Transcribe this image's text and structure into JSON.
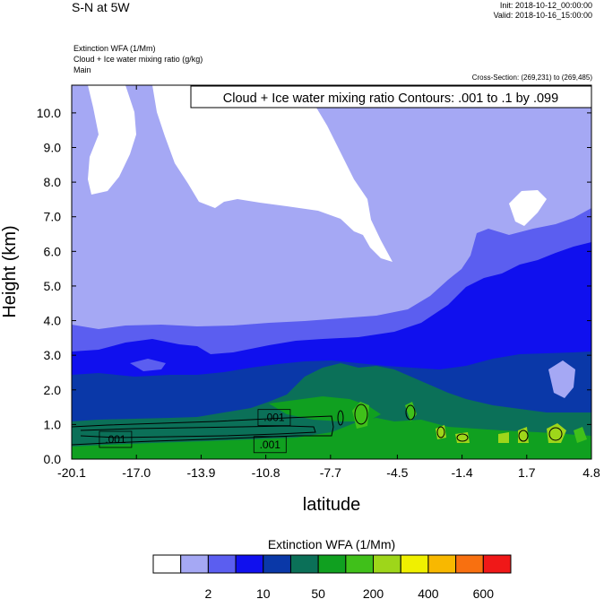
{
  "header": {
    "title": "S-N at 5W",
    "init": "Init: 2018-10-12_00:00:00",
    "valid": "Valid: 2018-10-16_15:00:00",
    "fields": [
      "Extinction WFA   (1/Mm)",
      "Cloud + Ice water mixing ratio   (g/kg)",
      "Main"
    ],
    "cross_section": "Cross-Section: (269,231) to (269,485)"
  },
  "chart_data": {
    "type": "heatmap",
    "title": "S-N at 5W",
    "xlabel": "latitude",
    "ylabel": "Height (km)",
    "x_ticks": [
      "-20.1",
      "-17.0",
      "-13.9",
      "-10.8",
      "-7.7",
      "-4.5",
      "-1.4",
      "1.7",
      "4.8"
    ],
    "x_values": [
      -20.1,
      -17.0,
      -13.9,
      -10.8,
      -7.7,
      -4.5,
      -1.4,
      1.7,
      4.8
    ],
    "y_ticks": [
      "0.0",
      "1.0",
      "2.0",
      "3.0",
      "4.0",
      "5.0",
      "6.0",
      "7.0",
      "8.0",
      "9.0",
      "10.0"
    ],
    "y_values": [
      0,
      1,
      2,
      3,
      4,
      5,
      6,
      7,
      8,
      9,
      10
    ],
    "xlim": [
      -20.1,
      4.8
    ],
    "ylim": [
      0,
      10.8
    ],
    "legend_box": "Cloud + Ice water mixing ratio Contours: .001 to .1 by .099",
    "contour_labels": [
      {
        "text": ".001",
        "x": -10.4,
        "y": 1.2
      },
      {
        "text": ".001",
        "x": -18.0,
        "y": 0.57
      },
      {
        "text": ".001",
        "x": -10.6,
        "y": 0.42
      }
    ],
    "colorbar": {
      "title": "Extinction WFA  (1/Mm)",
      "colors": [
        "#ffffff",
        "#a5a8f4",
        "#5b5ef0",
        "#1010ee",
        "#0a38a8",
        "#0b7058",
        "#10a020",
        "#40c01a",
        "#9ed61a",
        "#f0f000",
        "#f8b800",
        "#f87010",
        "#f01818"
      ],
      "labels": [
        {
          "text": "2",
          "boundary": 2
        },
        {
          "text": "10",
          "boundary": 4
        },
        {
          "text": "50",
          "boundary": 6
        },
        {
          "text": "200",
          "boundary": 8
        },
        {
          "text": "400",
          "boundary": 10
        },
        {
          "text": "600",
          "boundary": 12
        }
      ]
    }
  }
}
